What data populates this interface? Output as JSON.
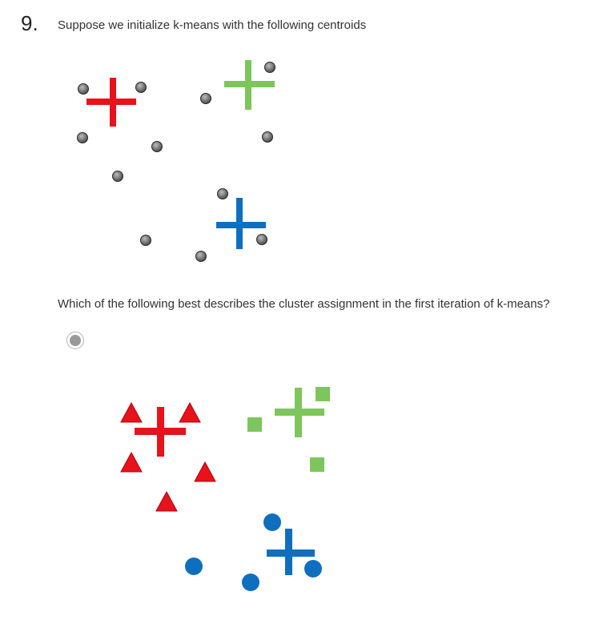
{
  "question": {
    "number": "9.",
    "text": "Suppose we initialize k-means with the following centroids",
    "prompt": "Which of the following best describes the cluster assignment in the first iteration of k-means?"
  },
  "colors": {
    "red": "#e8121a",
    "green": "#7dc65b",
    "blue": "#0e6fbf",
    "point": "#6b6b6b"
  },
  "initial_figure": {
    "centroids": [
      "red-plus-icon",
      "green-plus-icon",
      "blue-plus-icon"
    ],
    "points": "gray-circle-icon"
  },
  "option_1": {
    "selected": false,
    "clusters": [
      "red-triangle-icon",
      "green-square-icon",
      "blue-circle-icon"
    ]
  }
}
